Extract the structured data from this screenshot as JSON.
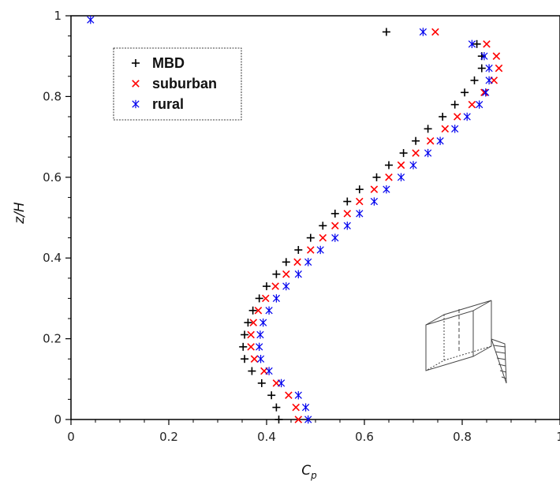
{
  "chart_data": {
    "type": "scatter",
    "xlabel_main": "C",
    "xlabel_sub": "p",
    "ylabel": "z/H",
    "xlim": [
      0,
      1
    ],
    "ylim": [
      0,
      1
    ],
    "xticks": [
      "0",
      "0.2",
      "0.4",
      "0.6",
      "0.8",
      "1"
    ],
    "yticks": [
      "0",
      "0.2",
      "0.4",
      "0.6",
      "0.8",
      "1"
    ],
    "legend_position": "top-left",
    "series": [
      {
        "name": "MBD",
        "marker": "plus",
        "color": "#000000",
        "points": [
          [
            0.425,
            0.0
          ],
          [
            0.42,
            0.03
          ],
          [
            0.41,
            0.06
          ],
          [
            0.39,
            0.09
          ],
          [
            0.37,
            0.12
          ],
          [
            0.355,
            0.15
          ],
          [
            0.352,
            0.18
          ],
          [
            0.355,
            0.21
          ],
          [
            0.362,
            0.24
          ],
          [
            0.372,
            0.27
          ],
          [
            0.385,
            0.3
          ],
          [
            0.4,
            0.33
          ],
          [
            0.42,
            0.36
          ],
          [
            0.44,
            0.39
          ],
          [
            0.465,
            0.42
          ],
          [
            0.49,
            0.45
          ],
          [
            0.515,
            0.48
          ],
          [
            0.54,
            0.51
          ],
          [
            0.565,
            0.54
          ],
          [
            0.59,
            0.57
          ],
          [
            0.625,
            0.6
          ],
          [
            0.65,
            0.63
          ],
          [
            0.68,
            0.66
          ],
          [
            0.705,
            0.69
          ],
          [
            0.73,
            0.72
          ],
          [
            0.76,
            0.75
          ],
          [
            0.785,
            0.78
          ],
          [
            0.805,
            0.81
          ],
          [
            0.825,
            0.84
          ],
          [
            0.84,
            0.87
          ],
          [
            0.84,
            0.9
          ],
          [
            0.83,
            0.93
          ],
          [
            0.645,
            0.96
          ]
        ]
      },
      {
        "name": "suburban",
        "marker": "x",
        "color": "#ff0000",
        "points": [
          [
            0.465,
            0.0
          ],
          [
            0.46,
            0.03
          ],
          [
            0.445,
            0.06
          ],
          [
            0.42,
            0.09
          ],
          [
            0.395,
            0.12
          ],
          [
            0.375,
            0.15
          ],
          [
            0.368,
            0.18
          ],
          [
            0.368,
            0.21
          ],
          [
            0.373,
            0.24
          ],
          [
            0.383,
            0.27
          ],
          [
            0.398,
            0.3
          ],
          [
            0.418,
            0.33
          ],
          [
            0.44,
            0.36
          ],
          [
            0.463,
            0.39
          ],
          [
            0.49,
            0.42
          ],
          [
            0.515,
            0.45
          ],
          [
            0.54,
            0.48
          ],
          [
            0.565,
            0.51
          ],
          [
            0.59,
            0.54
          ],
          [
            0.62,
            0.57
          ],
          [
            0.65,
            0.6
          ],
          [
            0.675,
            0.63
          ],
          [
            0.705,
            0.66
          ],
          [
            0.735,
            0.69
          ],
          [
            0.765,
            0.72
          ],
          [
            0.79,
            0.75
          ],
          [
            0.82,
            0.78
          ],
          [
            0.845,
            0.81
          ],
          [
            0.865,
            0.84
          ],
          [
            0.875,
            0.87
          ],
          [
            0.87,
            0.9
          ],
          [
            0.85,
            0.93
          ],
          [
            0.745,
            0.96
          ]
        ]
      },
      {
        "name": "rural",
        "marker": "asterisk",
        "color": "#0000ee",
        "points": [
          [
            0.485,
            0.0
          ],
          [
            0.48,
            0.03
          ],
          [
            0.465,
            0.06
          ],
          [
            0.43,
            0.09
          ],
          [
            0.405,
            0.12
          ],
          [
            0.388,
            0.15
          ],
          [
            0.385,
            0.18
          ],
          [
            0.387,
            0.21
          ],
          [
            0.393,
            0.24
          ],
          [
            0.405,
            0.27
          ],
          [
            0.42,
            0.3
          ],
          [
            0.44,
            0.33
          ],
          [
            0.465,
            0.36
          ],
          [
            0.485,
            0.39
          ],
          [
            0.51,
            0.42
          ],
          [
            0.54,
            0.45
          ],
          [
            0.565,
            0.48
          ],
          [
            0.59,
            0.51
          ],
          [
            0.62,
            0.54
          ],
          [
            0.645,
            0.57
          ],
          [
            0.675,
            0.6
          ],
          [
            0.7,
            0.63
          ],
          [
            0.73,
            0.66
          ],
          [
            0.755,
            0.69
          ],
          [
            0.785,
            0.72
          ],
          [
            0.81,
            0.75
          ],
          [
            0.835,
            0.78
          ],
          [
            0.848,
            0.81
          ],
          [
            0.855,
            0.84
          ],
          [
            0.855,
            0.87
          ],
          [
            0.845,
            0.9
          ],
          [
            0.82,
            0.93
          ],
          [
            0.72,
            0.96
          ],
          [
            0.04,
            0.99
          ]
        ]
      }
    ]
  }
}
